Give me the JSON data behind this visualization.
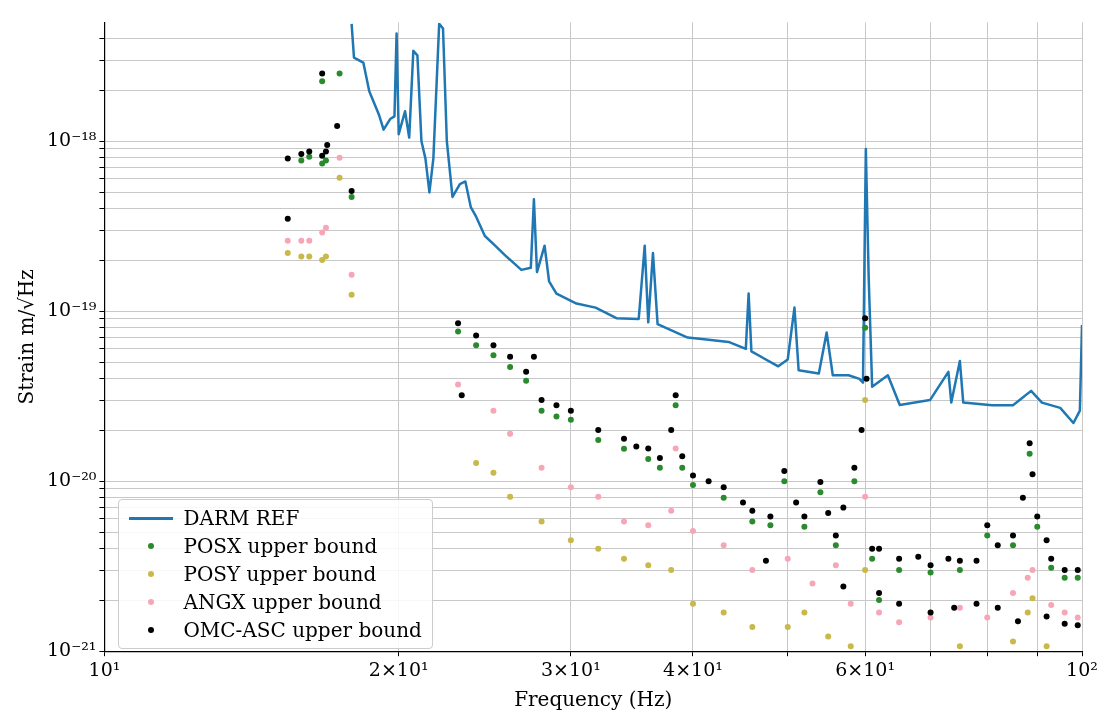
{
  "chart_data": {
    "type": "scatter",
    "xlabel": "Frequency (Hz)",
    "ylabel": "Strain m/√Hz",
    "log": "xy",
    "grid": true,
    "legend": "bottom left",
    "xlim": [
      10,
      100
    ],
    "ylim": [
      1e-21,
      5e-18
    ],
    "xticks": [
      {
        "value": 10,
        "label": "10¹"
      },
      {
        "value": 20,
        "label": "2×10¹"
      },
      {
        "value": 30,
        "label": "3×10¹"
      },
      {
        "value": 40,
        "label": "4×10¹"
      },
      {
        "value": 50,
        "label": null
      },
      {
        "value": 60,
        "label": "6×10¹"
      },
      {
        "value": 70,
        "label": null
      },
      {
        "value": 80,
        "label": null
      },
      {
        "value": 90,
        "label": null
      },
      {
        "value": 100,
        "label": "10²"
      }
    ],
    "yticks": [
      {
        "value": 1e-21,
        "label": "10⁻²¹"
      },
      {
        "value": 2e-21,
        "label": null
      },
      {
        "value": 3e-21,
        "label": null
      },
      {
        "value": 4e-21,
        "label": null
      },
      {
        "value": 5e-21,
        "label": null
      },
      {
        "value": 6e-21,
        "label": null
      },
      {
        "value": 7e-21,
        "label": null
      },
      {
        "value": 8e-21,
        "label": null
      },
      {
        "value": 9e-21,
        "label": null
      },
      {
        "value": 1e-20,
        "label": "10⁻²⁰"
      },
      {
        "value": 2e-20,
        "label": null
      },
      {
        "value": 3e-20,
        "label": null
      },
      {
        "value": 4e-20,
        "label": null
      },
      {
        "value": 5e-20,
        "label": null
      },
      {
        "value": 6e-20,
        "label": null
      },
      {
        "value": 7e-20,
        "label": null
      },
      {
        "value": 8e-20,
        "label": null
      },
      {
        "value": 9e-20,
        "label": null
      },
      {
        "value": 1e-19,
        "label": "10⁻¹⁹"
      },
      {
        "value": 2e-19,
        "label": null
      },
      {
        "value": 3e-19,
        "label": null
      },
      {
        "value": 4e-19,
        "label": null
      },
      {
        "value": 5e-19,
        "label": null
      },
      {
        "value": 6e-19,
        "label": null
      },
      {
        "value": 7e-19,
        "label": null
      },
      {
        "value": 8e-19,
        "label": null
      },
      {
        "value": 9e-19,
        "label": null
      },
      {
        "value": 1e-18,
        "label": "10⁻¹⁸"
      },
      {
        "value": 2e-18,
        "label": null
      },
      {
        "value": 3e-18,
        "label": null
      },
      {
        "value": 4e-18,
        "label": null
      }
    ],
    "series": [
      {
        "name": "DARM REF",
        "type": "line",
        "marker": "none",
        "line_style": "solid",
        "color": "#1f77b4",
        "x": [
          17.9,
          18.0,
          18.4,
          18.66,
          19.1,
          19.3,
          19.6,
          19.8,
          19.9,
          20.0,
          20.3,
          20.5,
          20.7,
          20.9,
          21.1,
          21.3,
          21.5,
          21.7,
          22.0,
          22.2,
          22.4,
          22.7,
          23.1,
          23.4,
          23.7,
          24.0,
          24.5,
          25.1,
          25.7,
          26.7,
          27.3,
          27.5,
          27.7,
          28.2,
          28.5,
          29.0,
          30.4,
          31.8,
          33.4,
          35.2,
          35.7,
          36.0,
          36.4,
          36.8,
          39.5,
          41.5,
          43.5,
          45.3,
          45.6,
          45.9,
          48.9,
          50.0,
          50.8,
          51.3,
          53.8,
          54.8,
          55.6,
          57.7,
          59.2,
          59.7,
          60.1,
          60.5,
          61.0,
          63.3,
          65.1,
          69.9,
          73.0,
          73.5,
          75.0,
          75.6,
          80.9,
          85,
          88.7,
          91,
          95,
          98,
          99.5,
          100
        ],
        "values": [
          4.9e-18,
          3.1e-18,
          2.9e-18,
          1.97e-18,
          1.42e-18,
          1.17e-18,
          1.35e-18,
          1.4e-18,
          4.3e-18,
          1.1e-18,
          1.5e-18,
          1.05e-18,
          3.4e-18,
          3.2e-18,
          1e-18,
          7.9e-19,
          5e-19,
          7.9e-19,
          4.9e-18,
          4.6e-18,
          1e-18,
          4.7e-19,
          5.6e-19,
          5.8e-19,
          4.1e-19,
          3.6e-19,
          2.77e-19,
          2.43e-19,
          2.13e-19,
          1.75e-19,
          1.8e-19,
          4.56e-19,
          1.7e-19,
          2.43e-19,
          1.5e-19,
          1.27e-19,
          1.11e-19,
          1.05e-19,
          9.1e-20,
          9e-20,
          2.43e-19,
          8.6e-20,
          2.2e-19,
          8.4e-20,
          7e-20,
          6.8e-20,
          6.6e-20,
          6e-20,
          1.27e-19,
          5.8e-20,
          4.74e-20,
          5.2e-20,
          1.05e-19,
          4.5e-20,
          4.3e-20,
          7.5e-20,
          4.2e-20,
          4.2e-20,
          4e-20,
          3.8e-20,
          9e-19,
          1.6e-19,
          3.6e-20,
          4.2e-20,
          2.81e-20,
          3e-20,
          4.4e-20,
          2.9e-20,
          5.1e-20,
          2.9e-20,
          2.8e-20,
          2.8e-20,
          3.4e-20,
          2.9e-20,
          2.7e-20,
          2.2e-20,
          2.6e-20,
          8.3e-20
        ]
      },
      {
        "name": "POSX upper bound",
        "type": "scatter",
        "marker": "circle",
        "color": "#2a8a2e",
        "x": [
          15.9,
          16.2,
          16.7,
          16.85,
          17.4,
          17.9,
          16.7,
          23,
          24,
          25,
          26,
          27,
          28,
          29,
          30,
          32,
          34,
          36,
          37,
          38.4,
          39,
          40,
          43,
          46,
          48,
          49.6,
          52,
          54,
          56,
          58.5,
          60,
          61,
          62,
          65,
          70,
          75,
          80,
          85,
          88.4,
          90,
          93,
          96,
          99
        ],
        "values": [
          7.7e-19,
          8.1e-19,
          7.4e-19,
          7.7e-19,
          2.5e-18,
          4.7e-19,
          2.25e-18,
          7.6e-20,
          6.3e-20,
          5.5e-20,
          4.7e-20,
          3.9e-20,
          2.6e-20,
          2.4e-20,
          2.3e-20,
          1.75e-20,
          1.55e-20,
          1.35e-20,
          1.2e-20,
          2.8e-20,
          1.2e-20,
          9.5e-21,
          8e-21,
          5.8e-21,
          5.5e-21,
          1e-20,
          5.4e-21,
          8.6e-21,
          4.2e-21,
          1e-20,
          8e-20,
          3.5e-21,
          2e-21,
          3e-21,
          2.9e-21,
          3e-21,
          4.8e-21,
          4.2e-21,
          1.45e-20,
          5.4e-21,
          3.1e-21,
          2.7e-21,
          2.7e-21
        ]
      },
      {
        "name": "POSY upper bound",
        "type": "scatter",
        "marker": "circle",
        "color": "#c9b84a",
        "x": [
          15.4,
          15.9,
          16.2,
          16.7,
          16.85,
          17.4,
          17.9,
          24,
          25,
          26,
          28,
          30,
          32,
          34,
          36,
          38,
          40,
          43,
          46,
          50,
          52,
          55,
          58,
          60,
          60,
          75,
          85,
          88,
          89,
          92
        ],
        "values": [
          2.2e-19,
          2.1e-19,
          2.1e-19,
          2e-19,
          2.1e-19,
          6.1e-19,
          1.25e-19,
          1.28e-20,
          1.12e-20,
          8.1e-21,
          5.8e-21,
          4.5e-21,
          4e-21,
          3.5e-21,
          3.2e-21,
          3e-21,
          1.9e-21,
          1.69e-21,
          1.39e-21,
          1.39e-21,
          1.69e-21,
          1.22e-21,
          1.07e-21,
          3e-21,
          3e-20,
          1.07e-21,
          1.14e-21,
          1.69e-21,
          2.05e-21,
          1.07e-21
        ]
      },
      {
        "name": "ANGX upper bound",
        "type": "scatter",
        "marker": "circle",
        "color": "#f7a6b8",
        "x": [
          15.4,
          15.9,
          16.2,
          16.7,
          16.85,
          17.4,
          17.9,
          23,
          25,
          26,
          28,
          30,
          32,
          34,
          36,
          38,
          38.4,
          40,
          43,
          46,
          50,
          53,
          56,
          58,
          60,
          62,
          65,
          70,
          75,
          80,
          85,
          88,
          89,
          93,
          96,
          99
        ],
        "values": [
          2.6e-19,
          2.6e-19,
          2.6e-19,
          2.9e-19,
          3.1e-19,
          8e-19,
          1.64e-19,
          3.7e-20,
          2.6e-20,
          1.9e-20,
          1.2e-20,
          9.2e-21,
          8.1e-21,
          5.8e-21,
          5.5e-21,
          6.7e-21,
          1.56e-20,
          5.1e-21,
          4.2e-21,
          3e-21,
          3.5e-21,
          2.5e-21,
          3.2e-21,
          1.9e-21,
          8.1e-21,
          1.69e-21,
          1.48e-21,
          1.58e-21,
          1.8e-21,
          1.58e-21,
          2.2e-21,
          2.7e-21,
          3e-21,
          1.87e-21,
          1.69e-21,
          1.58e-21
        ]
      },
      {
        "name": "OMC-ASC upper bound",
        "type": "scatter",
        "marker": "circle",
        "color": "#000000",
        "x": [
          15.4,
          15.9,
          16.2,
          16.7,
          16.85,
          16.9,
          17.3,
          17.9,
          15.4,
          16.7,
          23,
          23.2,
          24,
          25,
          26,
          27,
          27.5,
          28,
          29,
          30,
          32,
          34,
          35,
          36,
          37,
          38,
          38.4,
          39,
          40,
          41.5,
          43,
          45,
          46,
          47.5,
          48,
          49.6,
          51,
          52,
          54,
          55,
          56,
          57,
          57,
          58.5,
          59.5,
          60,
          60.2,
          61,
          62,
          62,
          65,
          65,
          68,
          70,
          70,
          73,
          74,
          75,
          78,
          78,
          80,
          82,
          82,
          85,
          86,
          87,
          88.4,
          89,
          90,
          92,
          92,
          93,
          96,
          96,
          99,
          99
        ],
        "values": [
          7.9e-19,
          8.4e-19,
          8.7e-19,
          8.2e-19,
          8.7e-19,
          9.5e-19,
          1.23e-18,
          5.1e-19,
          3.5e-19,
          2.5e-18,
          8.5e-20,
          3.2e-20,
          7.2e-20,
          6.3e-20,
          5.4e-20,
          4.4e-20,
          5.4e-20,
          3e-20,
          2.8e-20,
          2.6e-20,
          2e-20,
          1.78e-20,
          1.6e-20,
          1.56e-20,
          1.37e-20,
          2e-20,
          3.2e-20,
          1.4e-20,
          1.08e-20,
          1e-20,
          9.2e-21,
          7.5e-21,
          6.7e-21,
          3.4e-21,
          6.2e-21,
          1.15e-20,
          7.5e-21,
          6.2e-21,
          9.9e-21,
          6.5e-21,
          4.8e-21,
          7e-21,
          2.4e-21,
          1.2e-20,
          2e-20,
          9.1e-20,
          4e-20,
          4e-21,
          4e-21,
          2.2e-21,
          3.5e-21,
          1.9e-21,
          3.6e-21,
          3.2e-21,
          1.69e-21,
          3.5e-21,
          1.8e-21,
          3.4e-21,
          3.4e-21,
          1.9e-21,
          5.5e-21,
          4.2e-21,
          1.8e-21,
          4.8e-21,
          1.5e-21,
          8e-21,
          1.67e-20,
          1.1e-20,
          6.2e-21,
          4.5e-21,
          1.6e-21,
          3.5e-21,
          3e-21,
          1.45e-21,
          3e-21,
          1.42e-21
        ]
      }
    ]
  }
}
